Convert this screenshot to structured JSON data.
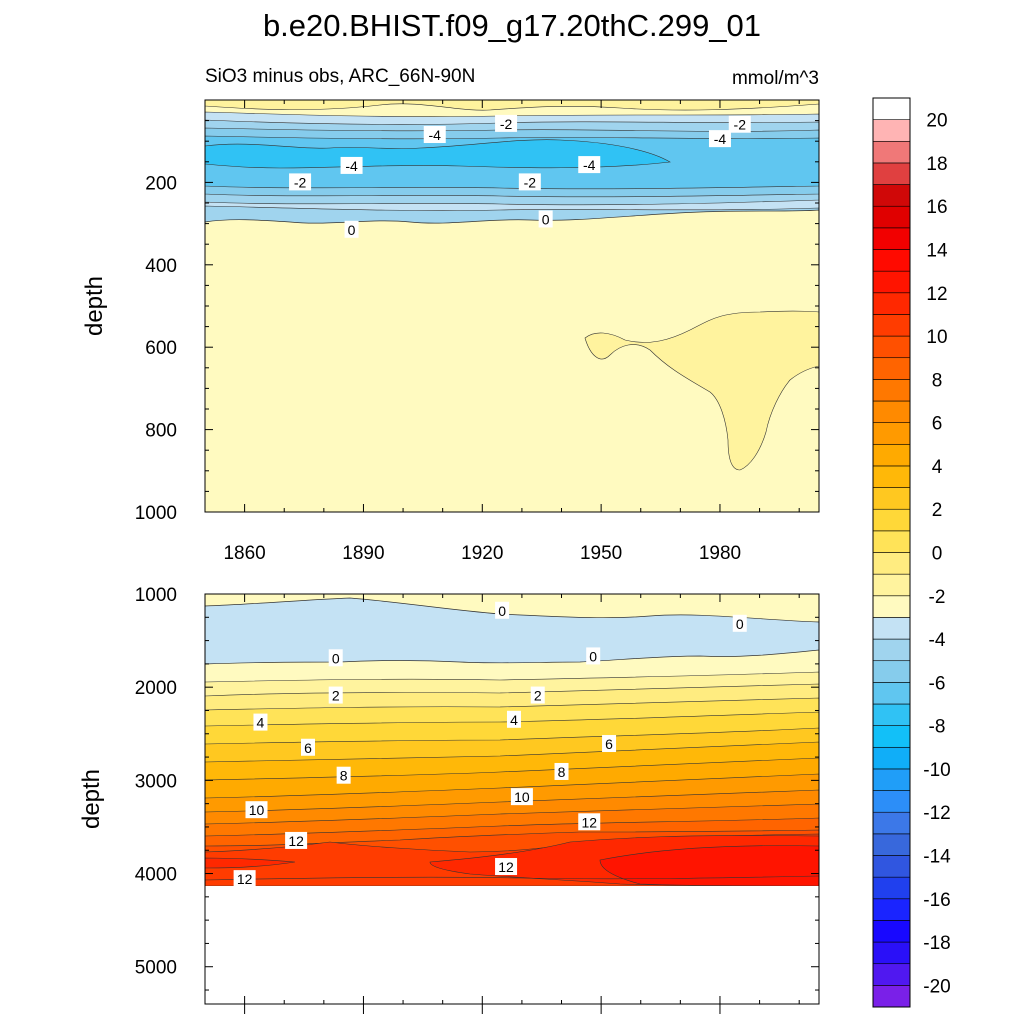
{
  "chart_data": {
    "type": "heatmap",
    "title": "b.e20.BHIST.f09_g17.20thC.299_01",
    "variable_label": "SiO3 minus obs, ARC_66N-90N",
    "units": "mmol/m^3",
    "xlabel": "",
    "x_range": [
      1850,
      2005
    ],
    "x_ticks": [
      "1860",
      "1890",
      "1920",
      "1950",
      "1980"
    ],
    "x_tick_values": [
      1860,
      1890,
      1920,
      1950,
      1980
    ],
    "panels": [
      {
        "name": "upper",
        "ylabel": "depth",
        "ylim": [
          0,
          1000
        ],
        "y_ticks": [
          "200",
          "400",
          "600",
          "800",
          "1000"
        ],
        "y_tick_values": [
          200,
          400,
          600,
          800,
          1000
        ],
        "contour_labels": [
          {
            "text": "-4",
            "x": 1908,
            "y": 85
          },
          {
            "text": "-2",
            "x": 1926,
            "y": 58
          },
          {
            "text": "-4",
            "x": 1980,
            "y": 95
          },
          {
            "text": "-2",
            "x": 1985,
            "y": 60
          },
          {
            "text": "-4",
            "x": 1887,
            "y": 160
          },
          {
            "text": "-4",
            "x": 1947,
            "y": 158
          },
          {
            "text": "-2",
            "x": 1874,
            "y": 200
          },
          {
            "text": "-2",
            "x": 1932,
            "y": 200
          },
          {
            "text": "0",
            "x": 1887,
            "y": 315
          },
          {
            "text": "0",
            "x": 1936,
            "y": 290
          }
        ]
      },
      {
        "name": "lower",
        "ylabel": "depth",
        "ylim": [
          1000,
          5400
        ],
        "y_ticks": [
          "1000",
          "2000",
          "3000",
          "4000",
          "5000"
        ],
        "y_tick_values": [
          1000,
          2000,
          3000,
          4000,
          5000
        ],
        "contour_labels": [
          {
            "text": "0",
            "x": 1925,
            "y": 1180
          },
          {
            "text": "0",
            "x": 1985,
            "y": 1320
          },
          {
            "text": "0",
            "x": 1883,
            "y": 1690
          },
          {
            "text": "0",
            "x": 1948,
            "y": 1670
          },
          {
            "text": "2",
            "x": 1883,
            "y": 2090
          },
          {
            "text": "2",
            "x": 1934,
            "y": 2090
          },
          {
            "text": "4",
            "x": 1864,
            "y": 2380
          },
          {
            "text": "4",
            "x": 1928,
            "y": 2350
          },
          {
            "text": "6",
            "x": 1876,
            "y": 2650
          },
          {
            "text": "6",
            "x": 1952,
            "y": 2610
          },
          {
            "text": "8",
            "x": 1885,
            "y": 2950
          },
          {
            "text": "8",
            "x": 1940,
            "y": 2910
          },
          {
            "text": "10",
            "x": 1863,
            "y": 3320
          },
          {
            "text": "10",
            "x": 1930,
            "y": 3180
          },
          {
            "text": "12",
            "x": 1873,
            "y": 3650
          },
          {
            "text": "12",
            "x": 1947,
            "y": 3450
          },
          {
            "text": "12",
            "x": 1860,
            "y": 4060
          },
          {
            "text": "12",
            "x": 1926,
            "y": 3930
          }
        ]
      }
    ],
    "colorbar": {
      "levels": [
        -21,
        -20,
        -19,
        -18,
        -17,
        -16,
        -15,
        -14,
        -13,
        -12,
        -11,
        -10,
        -9,
        -8,
        -7,
        -6,
        -5,
        -4,
        -3,
        -2,
        -1,
        0,
        1,
        2,
        3,
        4,
        5,
        6,
        7,
        8,
        9,
        10,
        11,
        12,
        13,
        14,
        15,
        16,
        17,
        18,
        19,
        20,
        21
      ],
      "tick_labels": [
        "-20",
        "-18",
        "-16",
        "-14",
        "-12",
        "-10",
        "-8",
        "-6",
        "-4",
        "-2",
        "0",
        "2",
        "4",
        "6",
        "8",
        "10",
        "12",
        "14",
        "16",
        "18",
        "20"
      ],
      "tick_values": [
        -20,
        -18,
        -16,
        -14,
        -12,
        -10,
        -8,
        -6,
        -4,
        -2,
        0,
        2,
        4,
        6,
        8,
        10,
        12,
        14,
        16,
        18,
        20
      ],
      "colors": [
        "#7a20e8",
        "#5018f0",
        "#2a10f8",
        "#1808ff",
        "#1a24ff",
        "#2040ee",
        "#3056e0",
        "#3868dc",
        "#3c78e8",
        "#2c8ef8",
        "#209ef8",
        "#10aef8",
        "#12c0f8",
        "#30c2f4",
        "#60c6f0",
        "#86ccec",
        "#a0d4ee",
        "#c4e2f4",
        "#fffac0",
        "#fff39e",
        "#ffec80",
        "#ffe358",
        "#ffd838",
        "#ffc820",
        "#ffb808",
        "#ffaa00",
        "#ff9a00",
        "#ff8a00",
        "#ff7800",
        "#ff6400",
        "#ff5000",
        "#ff3c00",
        "#ff2800",
        "#ff1400",
        "#ff0a00",
        "#f20000",
        "#e00000",
        "#d00808",
        "#e04040",
        "#f07878",
        "#ffb4b4"
      ]
    }
  }
}
